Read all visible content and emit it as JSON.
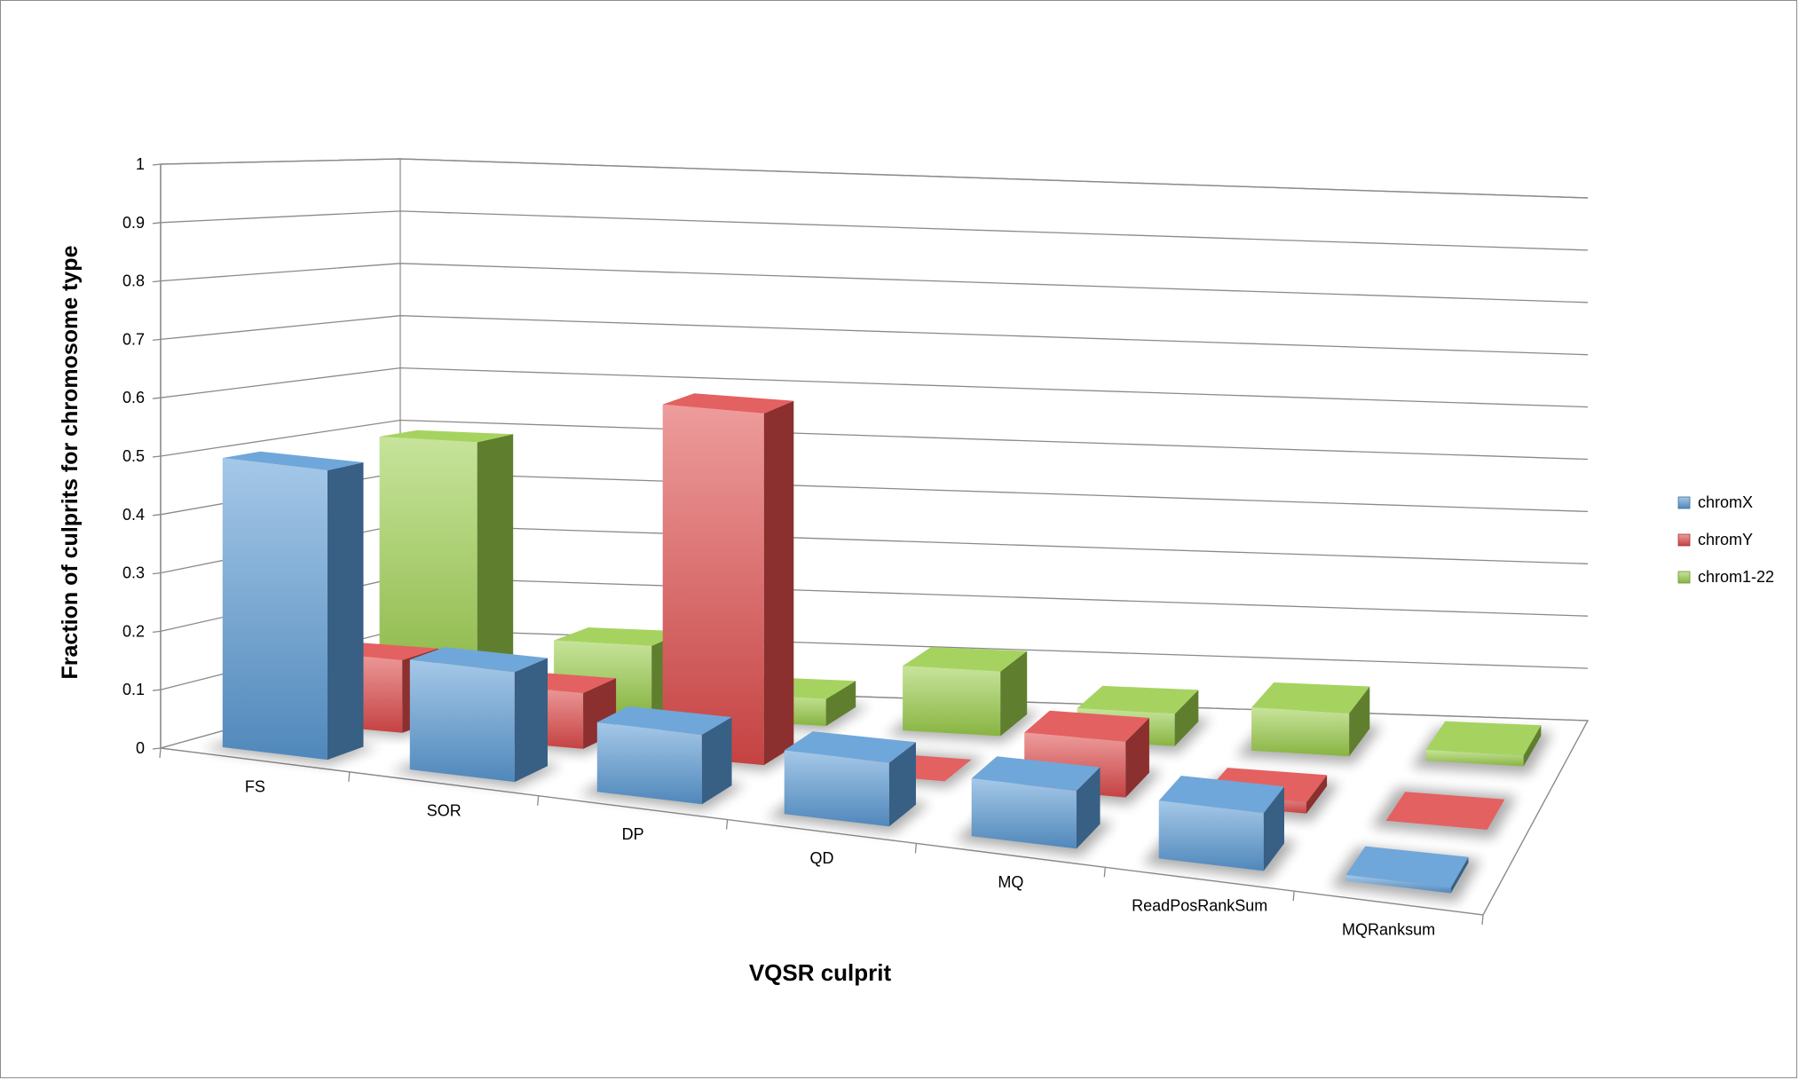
{
  "chart_data": {
    "type": "bar",
    "subtype": "3d-clustered-column",
    "title": "",
    "xlabel": "VQSR culprit",
    "ylabel": "Fraction of culprits for chromosome type",
    "ylim": [
      0,
      1
    ],
    "yticks": [
      "0",
      "0.1",
      "0.2",
      "0.3",
      "0.4",
      "0.5",
      "0.6",
      "0.7",
      "0.8",
      "0.9",
      "1"
    ],
    "categories": [
      "FS",
      "SOR",
      "DP",
      "QD",
      "MQ",
      "ReadPosRankSum",
      "MQRanksum"
    ],
    "series": [
      {
        "name": "chromX",
        "color": "#5b9bd5",
        "values": [
          0.5,
          0.19,
          0.12,
          0.11,
          0.1,
          0.1,
          0.01
        ]
      },
      {
        "name": "chromY",
        "color": "#e04b4b",
        "values": [
          0.13,
          0.1,
          0.63,
          0.0,
          0.1,
          0.02,
          0.0
        ]
      },
      {
        "name": "chrom1-22",
        "color": "#9acd4a",
        "values": [
          0.49,
          0.13,
          0.05,
          0.12,
          0.06,
          0.08,
          0.02
        ]
      }
    ],
    "grid": true,
    "legend_position": "right"
  }
}
